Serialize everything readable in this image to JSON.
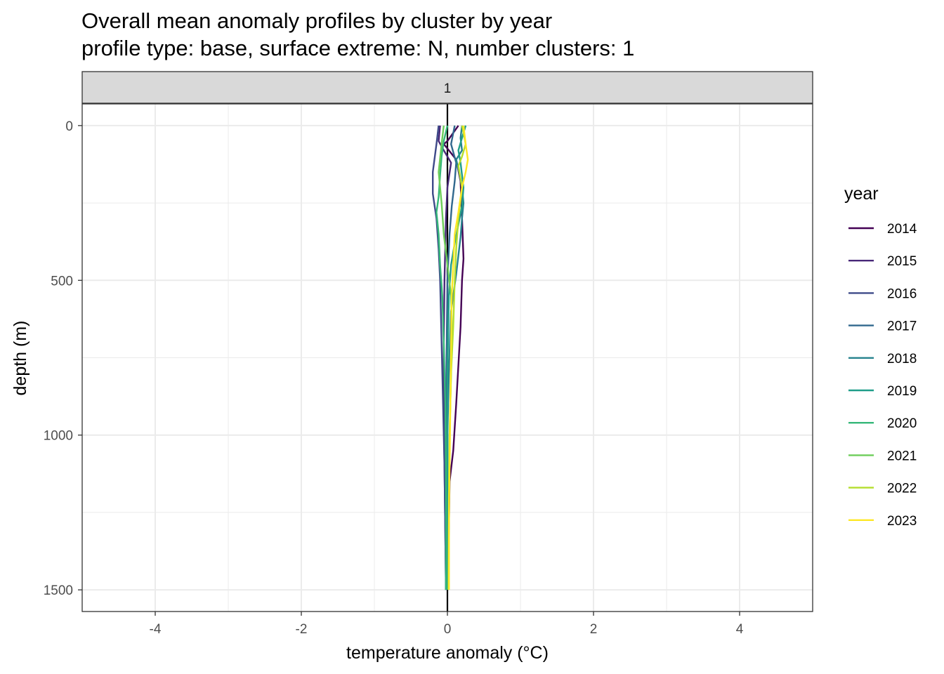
{
  "chart_data": {
    "type": "line",
    "title": "Overall mean anomaly profiles by cluster by year",
    "subtitle": "profile type: base, surface extreme: N, number clusters: 1",
    "xlabel": "temperature anomaly (°C)",
    "ylabel": "depth (m)",
    "facet_label": "1",
    "xlim": [
      -5,
      5
    ],
    "ylim": [
      1570,
      -70
    ],
    "y_reversed": true,
    "x_ticks": [
      -4,
      -2,
      0,
      2,
      4
    ],
    "x_tick_labels": [
      "-4",
      "-2",
      "0",
      "2",
      "4"
    ],
    "y_ticks": [
      0,
      500,
      1000,
      1500
    ],
    "y_tick_labels": [
      "0",
      "500",
      "1000",
      "1500"
    ],
    "grid": true,
    "reference_line_x": 0,
    "legend_title": "year",
    "legend_position": "right",
    "series": [
      {
        "name": "2014",
        "color": "#440154",
        "points": [
          [
            0.15,
            0
          ],
          [
            0.0,
            50
          ],
          [
            -0.05,
            60
          ],
          [
            0.02,
            80
          ],
          [
            0.12,
            110
          ],
          [
            0.18,
            180
          ],
          [
            0.2,
            300
          ],
          [
            0.22,
            430
          ],
          [
            0.2,
            500
          ],
          [
            0.18,
            650
          ],
          [
            0.12,
            900
          ],
          [
            0.08,
            1050
          ],
          [
            0.03,
            1150
          ],
          [
            0.02,
            1300
          ],
          [
            0.0,
            1500
          ]
        ]
      },
      {
        "name": "2015",
        "color": "#482878",
        "points": [
          [
            -0.1,
            0
          ],
          [
            -0.12,
            50
          ],
          [
            -0.05,
            80
          ],
          [
            0.05,
            120
          ],
          [
            0.0,
            200
          ],
          [
            -0.02,
            300
          ],
          [
            -0.03,
            400
          ],
          [
            -0.04,
            500
          ],
          [
            -0.05,
            700
          ],
          [
            -0.05,
            900
          ],
          [
            -0.04,
            1100
          ],
          [
            -0.03,
            1300
          ],
          [
            -0.02,
            1500
          ]
        ]
      },
      {
        "name": "2016",
        "color": "#3E4A89",
        "points": [
          [
            -0.12,
            0
          ],
          [
            -0.15,
            60
          ],
          [
            -0.2,
            150
          ],
          [
            -0.2,
            220
          ],
          [
            -0.15,
            300
          ],
          [
            -0.12,
            400
          ],
          [
            -0.1,
            500
          ],
          [
            -0.08,
            700
          ],
          [
            -0.06,
            900
          ],
          [
            -0.04,
            1100
          ],
          [
            -0.03,
            1300
          ],
          [
            -0.02,
            1500
          ]
        ]
      },
      {
        "name": "2017",
        "color": "#31688E",
        "points": [
          [
            0.1,
            0
          ],
          [
            0.05,
            60
          ],
          [
            0.12,
            120
          ],
          [
            0.1,
            180
          ],
          [
            0.06,
            260
          ],
          [
            0.03,
            350
          ],
          [
            0.0,
            500
          ],
          [
            -0.01,
            700
          ],
          [
            -0.02,
            900
          ],
          [
            -0.02,
            1100
          ],
          [
            -0.02,
            1300
          ],
          [
            -0.02,
            1500
          ]
        ]
      },
      {
        "name": "2018",
        "color": "#26828E",
        "points": [
          [
            0.2,
            0
          ],
          [
            0.18,
            40
          ],
          [
            0.2,
            80
          ],
          [
            0.12,
            110
          ],
          [
            0.16,
            150
          ],
          [
            0.2,
            200
          ],
          [
            0.22,
            250
          ],
          [
            0.2,
            300
          ],
          [
            0.18,
            360
          ],
          [
            0.15,
            420
          ],
          [
            0.12,
            480
          ],
          [
            0.05,
            600
          ],
          [
            0.02,
            800
          ],
          [
            0.0,
            1000
          ],
          [
            -0.01,
            1200
          ],
          [
            -0.01,
            1500
          ]
        ]
      },
      {
        "name": "2019",
        "color": "#1F9E89",
        "points": [
          [
            0.25,
            0
          ],
          [
            0.2,
            40
          ],
          [
            0.15,
            80
          ],
          [
            0.18,
            120
          ],
          [
            0.22,
            200
          ],
          [
            0.2,
            260
          ],
          [
            0.15,
            320
          ],
          [
            0.1,
            380
          ],
          [
            0.05,
            450
          ],
          [
            0.02,
            550
          ],
          [
            0.0,
            800
          ],
          [
            0.0,
            1100
          ],
          [
            0.0,
            1500
          ]
        ]
      },
      {
        "name": "2020",
        "color": "#35B779",
        "points": [
          [
            0.0,
            0
          ],
          [
            -0.05,
            50
          ],
          [
            -0.08,
            100
          ],
          [
            -0.1,
            160
          ],
          [
            -0.12,
            230
          ],
          [
            -0.15,
            280
          ],
          [
            -0.12,
            350
          ],
          [
            -0.1,
            450
          ],
          [
            -0.07,
            550
          ],
          [
            -0.05,
            700
          ],
          [
            -0.03,
            900
          ],
          [
            -0.02,
            1100
          ],
          [
            -0.02,
            1300
          ],
          [
            -0.02,
            1500
          ]
        ]
      },
      {
        "name": "2021",
        "color": "#6DCD59",
        "points": [
          [
            -0.05,
            0
          ],
          [
            -0.08,
            60
          ],
          [
            -0.12,
            150
          ],
          [
            -0.08,
            250
          ],
          [
            -0.05,
            350
          ],
          [
            0.0,
            450
          ],
          [
            0.05,
            550
          ],
          [
            0.06,
            650
          ],
          [
            0.05,
            800
          ],
          [
            0.03,
            1000
          ],
          [
            0.02,
            1200
          ],
          [
            0.01,
            1500
          ]
        ]
      },
      {
        "name": "2022",
        "color": "#B4DE2C",
        "points": [
          [
            0.2,
            0
          ],
          [
            0.25,
            60
          ],
          [
            0.2,
            100
          ],
          [
            0.15,
            130
          ],
          [
            0.2,
            200
          ],
          [
            0.15,
            300
          ],
          [
            0.12,
            400
          ],
          [
            0.1,
            500
          ],
          [
            0.08,
            650
          ],
          [
            0.05,
            800
          ],
          [
            0.03,
            1000
          ],
          [
            0.02,
            1200
          ],
          [
            0.02,
            1500
          ]
        ]
      },
      {
        "name": "2023",
        "color": "#FDE725",
        "points": [
          [
            0.22,
            0
          ],
          [
            0.25,
            60
          ],
          [
            0.28,
            110
          ],
          [
            0.25,
            150
          ],
          [
            0.2,
            200
          ],
          [
            0.15,
            280
          ],
          [
            0.1,
            350
          ],
          [
            0.08,
            450
          ],
          [
            0.06,
            550
          ],
          [
            0.05,
            700
          ],
          [
            0.04,
            900
          ],
          [
            0.03,
            1100
          ],
          [
            0.02,
            1300
          ],
          [
            0.02,
            1500
          ]
        ]
      }
    ]
  }
}
